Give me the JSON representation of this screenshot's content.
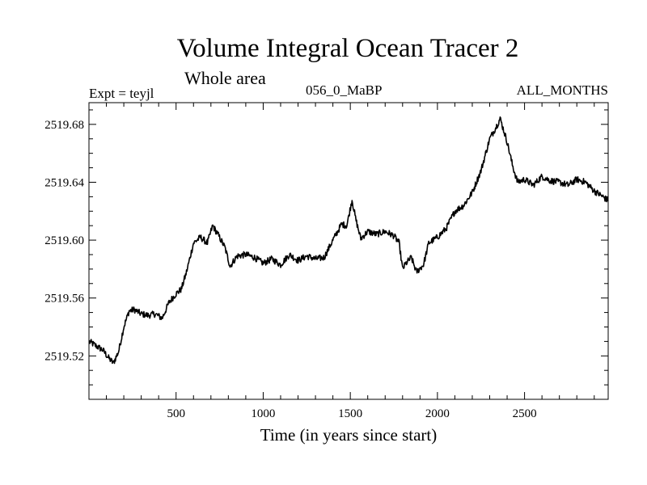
{
  "chart_data": {
    "type": "line",
    "title": "Volume Integral Ocean Tracer 2",
    "subtitle": "Whole area",
    "header_left": "Expt = teyjl",
    "header_center": "056_0_MaBP",
    "header_right": "ALL_MONTHS",
    "xlabel": "Time (in years since start)",
    "ylabel": "",
    "xlim": [
      0,
      2980
    ],
    "ylim": [
      2519.49,
      2519.695
    ],
    "xticks": [
      500,
      1000,
      1500,
      2000,
      2500
    ],
    "yticks": [
      2519.52,
      2519.56,
      2519.6,
      2519.64,
      2519.68
    ],
    "xtick_labels": [
      "500",
      "1000",
      "1500",
      "2000",
      "2500"
    ],
    "ytick_labels": [
      "2519.52",
      "2519.56",
      "2519.60",
      "2519.64",
      "2519.68"
    ],
    "grid": false,
    "line_color": "#000000",
    "series": [
      {
        "x": [
          0,
          40,
          80,
          110,
          140,
          170,
          200,
          230,
          260,
          300,
          340,
          380,
          420,
          460,
          500,
          530,
          560,
          600,
          640,
          680,
          710,
          740,
          780,
          810,
          850,
          900,
          950,
          1000,
          1050,
          1100,
          1150,
          1200,
          1250,
          1300,
          1350,
          1400,
          1450,
          1480,
          1510,
          1530,
          1560,
          1600,
          1650,
          1700,
          1750,
          1780,
          1800,
          1820,
          1850,
          1880,
          1920,
          1950,
          2000,
          2050,
          2100,
          2150,
          2200,
          2250,
          2300,
          2340,
          2360,
          2380,
          2400,
          2430,
          2460,
          2500,
          2550,
          2600,
          2650,
          2700,
          2750,
          2800,
          2850,
          2900,
          2950,
          2980
        ],
        "y": [
          2519.53,
          2519.527,
          2519.524,
          2519.519,
          2519.515,
          2519.523,
          2519.54,
          2519.551,
          2519.552,
          2519.549,
          2519.548,
          2519.549,
          2519.546,
          2519.557,
          2519.563,
          2519.566,
          2519.578,
          2519.598,
          2519.602,
          2519.598,
          2519.61,
          2519.604,
          2519.595,
          2519.582,
          2519.589,
          2519.59,
          2519.588,
          2519.584,
          2519.587,
          2519.583,
          2519.59,
          2519.586,
          2519.589,
          2519.587,
          2519.588,
          2519.6,
          2519.611,
          2519.61,
          2519.628,
          2519.615,
          2519.601,
          2519.606,
          2519.604,
          2519.606,
          2519.603,
          2519.598,
          2519.58,
          2519.584,
          2519.588,
          2519.578,
          2519.583,
          2519.598,
          2519.602,
          2519.608,
          2519.62,
          2519.624,
          2519.633,
          2519.648,
          2519.67,
          2519.679,
          2519.684,
          2519.676,
          2519.668,
          2519.652,
          2519.64,
          2519.642,
          2519.638,
          2519.644,
          2519.641,
          2519.64,
          2519.638,
          2519.642,
          2519.64,
          2519.634,
          2519.63,
          2519.627
        ]
      }
    ]
  }
}
